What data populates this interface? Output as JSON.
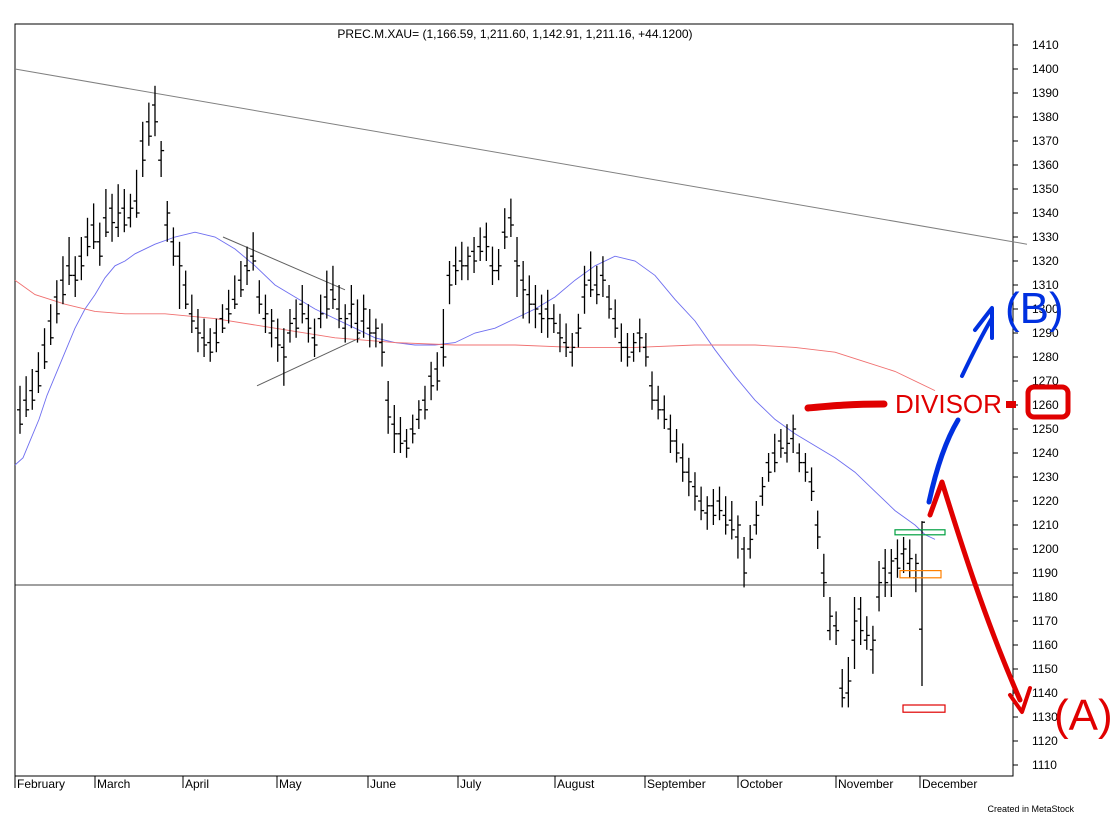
{
  "chart_data": {
    "type": "ohlc",
    "title": "PREC.M.XAU= (1,166.59, 1,211.60, 1,142.91, 1,211.16, +44.1200)",
    "credit": "Created in MetaStock",
    "ylim": [
      1105,
      1416
    ],
    "y_ticks": [
      1410,
      1400,
      1390,
      1380,
      1370,
      1360,
      1350,
      1340,
      1330,
      1320,
      1310,
      1300,
      1290,
      1280,
      1270,
      1260,
      1250,
      1240,
      1230,
      1220,
      1210,
      1200,
      1190,
      1180,
      1170,
      1160,
      1150,
      1140,
      1130,
      1120,
      1110
    ],
    "x_labels": [
      "February",
      "March",
      "April",
      "May",
      "June",
      "July",
      "August",
      "September",
      "October",
      "November",
      "December"
    ],
    "bars": [
      [
        1258,
        1252,
        1268,
        1248
      ],
      [
        1262,
        1258,
        1272,
        1255
      ],
      [
        1266,
        1262,
        1275,
        1258
      ],
      [
        1274,
        1268,
        1282,
        1265
      ],
      [
        1285,
        1278,
        1292,
        1275
      ],
      [
        1295,
        1288,
        1302,
        1285
      ],
      [
        1305,
        1298,
        1312,
        1294
      ],
      [
        1312,
        1306,
        1322,
        1302
      ],
      [
        1318,
        1314,
        1330,
        1310
      ],
      [
        1314,
        1312,
        1322,
        1305
      ],
      [
        1322,
        1318,
        1330,
        1312
      ],
      [
        1330,
        1326,
        1338,
        1322
      ],
      [
        1335,
        1328,
        1344,
        1325
      ],
      [
        1328,
        1322,
        1336,
        1318
      ],
      [
        1338,
        1332,
        1350,
        1330
      ],
      [
        1342,
        1336,
        1348,
        1328
      ],
      [
        1334,
        1340,
        1352,
        1330
      ],
      [
        1342,
        1335,
        1350,
        1332
      ],
      [
        1338,
        1342,
        1348,
        1334
      ],
      [
        1345,
        1340,
        1358,
        1338
      ],
      [
        1370,
        1362,
        1378,
        1355
      ],
      [
        1378,
        1372,
        1386,
        1368
      ],
      [
        1385,
        1378,
        1393,
        1372
      ],
      [
        1362,
        1366,
        1370,
        1355
      ],
      [
        1335,
        1340,
        1345,
        1328
      ],
      [
        1328,
        1322,
        1334,
        1318
      ],
      [
        1322,
        1318,
        1328,
        1300
      ],
      [
        1310,
        1302,
        1316,
        1300
      ],
      [
        1298,
        1295,
        1306,
        1290
      ],
      [
        1292,
        1290,
        1300,
        1282
      ],
      [
        1288,
        1285,
        1296,
        1280
      ],
      [
        1286,
        1282,
        1292,
        1278
      ],
      [
        1290,
        1286,
        1296,
        1282
      ],
      [
        1296,
        1292,
        1302,
        1290
      ],
      [
        1300,
        1298,
        1308,
        1294
      ],
      [
        1304,
        1302,
        1314,
        1300
      ],
      [
        1312,
        1308,
        1320,
        1305
      ],
      [
        1318,
        1316,
        1326,
        1310
      ],
      [
        1322,
        1320,
        1332,
        1316
      ],
      [
        1305,
        1302,
        1312,
        1298
      ],
      [
        1296,
        1298,
        1306,
        1290
      ],
      [
        1290,
        1295,
        1300,
        1284
      ],
      [
        1288,
        1285,
        1296,
        1278
      ],
      [
        1284,
        1280,
        1292,
        1268
      ],
      [
        1290,
        1294,
        1300,
        1286
      ],
      [
        1296,
        1292,
        1304,
        1288
      ],
      [
        1302,
        1298,
        1310,
        1294
      ],
      [
        1296,
        1292,
        1302,
        1286
      ],
      [
        1288,
        1285,
        1296,
        1280
      ],
      [
        1296,
        1298,
        1306,
        1292
      ],
      [
        1305,
        1300,
        1316,
        1296
      ],
      [
        1308,
        1304,
        1318,
        1300
      ],
      [
        1300,
        1296,
        1310,
        1292
      ],
      [
        1292,
        1296,
        1302,
        1286
      ],
      [
        1298,
        1302,
        1310,
        1292
      ],
      [
        1294,
        1290,
        1304,
        1286
      ],
      [
        1295,
        1300,
        1306,
        1288
      ],
      [
        1292,
        1290,
        1300,
        1284
      ],
      [
        1290,
        1292,
        1296,
        1284
      ],
      [
        1286,
        1282,
        1294,
        1276
      ],
      [
        1262,
        1255,
        1270,
        1248
      ],
      [
        1252,
        1248,
        1260,
        1240
      ],
      [
        1248,
        1244,
        1255,
        1240
      ],
      [
        1245,
        1242,
        1250,
        1238
      ],
      [
        1250,
        1248,
        1256,
        1244
      ],
      [
        1254,
        1258,
        1262,
        1250
      ],
      [
        1262,
        1258,
        1268,
        1254
      ],
      [
        1272,
        1268,
        1278,
        1262
      ],
      [
        1275,
        1270,
        1282,
        1266
      ],
      [
        1284,
        1280,
        1300,
        1276
      ],
      [
        1314,
        1310,
        1320,
        1302
      ],
      [
        1318,
        1316,
        1326,
        1310
      ],
      [
        1320,
        1318,
        1328,
        1312
      ],
      [
        1318,
        1322,
        1326,
        1312
      ],
      [
        1324,
        1320,
        1330,
        1315
      ],
      [
        1326,
        1324,
        1334,
        1320
      ],
      [
        1330,
        1326,
        1336,
        1320
      ],
      [
        1318,
        1316,
        1326,
        1310
      ],
      [
        1316,
        1318,
        1325,
        1312
      ],
      [
        1332,
        1330,
        1342,
        1325
      ],
      [
        1338,
        1335,
        1346,
        1330
      ],
      [
        1320,
        1318,
        1330,
        1305
      ],
      [
        1312,
        1308,
        1320,
        1296
      ],
      [
        1306,
        1302,
        1314,
        1294
      ],
      [
        1302,
        1300,
        1310,
        1292
      ],
      [
        1298,
        1296,
        1306,
        1290
      ],
      [
        1300,
        1296,
        1308,
        1288
      ],
      [
        1296,
        1294,
        1302,
        1290
      ],
      [
        1290,
        1288,
        1298,
        1282
      ],
      [
        1286,
        1284,
        1294,
        1280
      ],
      [
        1282,
        1284,
        1290,
        1276
      ],
      [
        1290,
        1292,
        1298,
        1284
      ],
      [
        1305,
        1310,
        1318,
        1298
      ],
      [
        1312,
        1308,
        1324,
        1305
      ],
      [
        1310,
        1306,
        1318,
        1302
      ],
      [
        1314,
        1312,
        1322,
        1305
      ],
      [
        1305,
        1300,
        1310,
        1296
      ],
      [
        1296,
        1292,
        1304,
        1288
      ],
      [
        1286,
        1284,
        1294,
        1278
      ],
      [
        1284,
        1280,
        1290,
        1276
      ],
      [
        1282,
        1286,
        1290,
        1278
      ],
      [
        1290,
        1288,
        1296,
        1282
      ],
      [
        1284,
        1280,
        1290,
        1276
      ],
      [
        1268,
        1262,
        1274,
        1258
      ],
      [
        1262,
        1258,
        1268,
        1254
      ],
      [
        1258,
        1254,
        1264,
        1250
      ],
      [
        1250,
        1245,
        1256,
        1240
      ],
      [
        1245,
        1240,
        1250,
        1236
      ],
      [
        1238,
        1232,
        1244,
        1228
      ],
      [
        1232,
        1228,
        1238,
        1222
      ],
      [
        1226,
        1222,
        1232,
        1216
      ],
      [
        1220,
        1216,
        1226,
        1212
      ],
      [
        1215,
        1218,
        1222,
        1208
      ],
      [
        1218,
        1214,
        1225,
        1210
      ],
      [
        1220,
        1216,
        1226,
        1212
      ],
      [
        1214,
        1210,
        1222,
        1206
      ],
      [
        1212,
        1208,
        1220,
        1204
      ],
      [
        1205,
        1210,
        1214,
        1196
      ],
      [
        1200,
        1190,
        1205,
        1184
      ],
      [
        1200,
        1204,
        1210,
        1196
      ],
      [
        1210,
        1214,
        1220,
        1206
      ],
      [
        1222,
        1226,
        1230,
        1218
      ],
      [
        1236,
        1232,
        1240,
        1228
      ],
      [
        1240,
        1236,
        1248,
        1232
      ],
      [
        1245,
        1242,
        1250,
        1238
      ],
      [
        1240,
        1244,
        1252,
        1236
      ],
      [
        1246,
        1250,
        1256,
        1240
      ],
      [
        1240,
        1236,
        1244,
        1232
      ],
      [
        1236,
        1232,
        1240,
        1228
      ],
      [
        1228,
        1224,
        1234,
        1220
      ],
      [
        1210,
        1205,
        1216,
        1200
      ],
      [
        1190,
        1186,
        1198,
        1180
      ],
      [
        1166,
        1172,
        1180,
        1162
      ],
      [
        1168,
        1166,
        1174,
        1160
      ],
      [
        1142,
        1138,
        1150,
        1134
      ],
      [
        1140,
        1145,
        1155,
        1134
      ],
      [
        1162,
        1170,
        1180,
        1150
      ],
      [
        1175,
        1166,
        1180,
        1160
      ],
      [
        1162,
        1164,
        1172,
        1158
      ],
      [
        1158,
        1162,
        1168,
        1148
      ],
      [
        1180,
        1186,
        1195,
        1174
      ],
      [
        1192,
        1186,
        1200,
        1180
      ],
      [
        1190,
        1195,
        1200,
        1180
      ],
      [
        1196,
        1192,
        1204,
        1188
      ],
      [
        1198,
        1200,
        1205,
        1190
      ],
      [
        1194,
        1196,
        1204,
        1188
      ],
      [
        1188,
        1194,
        1198,
        1182
      ],
      [
        1166.59,
        1211.16,
        1211.6,
        1142.91
      ]
    ],
    "ma_blue": [
      [
        0,
        1235
      ],
      [
        8,
        1238
      ],
      [
        16,
        1246
      ],
      [
        24,
        1254
      ],
      [
        32,
        1264
      ],
      [
        40,
        1272
      ],
      [
        50,
        1282
      ],
      [
        60,
        1292
      ],
      [
        70,
        1300
      ],
      [
        80,
        1306
      ],
      [
        90,
        1313
      ],
      [
        100,
        1318
      ],
      [
        110,
        1320
      ],
      [
        120,
        1323
      ],
      [
        140,
        1327
      ],
      [
        160,
        1330
      ],
      [
        180,
        1332
      ],
      [
        200,
        1330
      ],
      [
        220,
        1325
      ],
      [
        240,
        1318
      ],
      [
        260,
        1310
      ],
      [
        280,
        1305
      ],
      [
        300,
        1300
      ],
      [
        320,
        1296
      ],
      [
        340,
        1292
      ],
      [
        360,
        1288
      ],
      [
        380,
        1286
      ],
      [
        400,
        1285
      ],
      [
        420,
        1285
      ],
      [
        440,
        1286
      ],
      [
        460,
        1290
      ],
      [
        480,
        1292
      ],
      [
        500,
        1296
      ],
      [
        520,
        1300
      ],
      [
        540,
        1305
      ],
      [
        560,
        1312
      ],
      [
        580,
        1318
      ],
      [
        600,
        1322
      ],
      [
        620,
        1320
      ],
      [
        640,
        1314
      ],
      [
        660,
        1304
      ],
      [
        680,
        1295
      ],
      [
        700,
        1283
      ],
      [
        720,
        1272
      ],
      [
        740,
        1262
      ],
      [
        760,
        1254
      ],
      [
        780,
        1248
      ],
      [
        800,
        1243
      ],
      [
        820,
        1238
      ],
      [
        840,
        1232
      ],
      [
        860,
        1224
      ],
      [
        880,
        1216
      ],
      [
        900,
        1210
      ],
      [
        910,
        1206
      ],
      [
        920,
        1204
      ]
    ],
    "ma_red": [
      [
        0,
        1312
      ],
      [
        20,
        1306
      ],
      [
        50,
        1302
      ],
      [
        80,
        1299
      ],
      [
        110,
        1298
      ],
      [
        150,
        1298
      ],
      [
        200,
        1296
      ],
      [
        260,
        1292
      ],
      [
        320,
        1288
      ],
      [
        380,
        1286
      ],
      [
        440,
        1285
      ],
      [
        500,
        1285
      ],
      [
        560,
        1284
      ],
      [
        620,
        1284
      ],
      [
        680,
        1285
      ],
      [
        740,
        1285
      ],
      [
        780,
        1284
      ],
      [
        820,
        1282
      ],
      [
        850,
        1278
      ],
      [
        880,
        1274
      ],
      [
        920,
        1266
      ]
    ],
    "trendlines": [
      {
        "points": [
          [
            0,
            1400
          ],
          [
            1012,
            1327
          ]
        ],
        "color": "#808080"
      },
      {
        "points": [
          [
            208,
            1330
          ],
          [
            330,
            1308
          ]
        ],
        "color": "#606060"
      },
      {
        "points": [
          [
            242,
            1268
          ],
          [
            345,
            1288
          ]
        ],
        "color": "#606060"
      }
    ],
    "hline": 1185,
    "boxes": [
      {
        "x": [
          880,
          930
        ],
        "y": [
          1206,
          1208
        ],
        "color": "#00a040"
      },
      {
        "x": [
          885,
          926
        ],
        "y": [
          1188,
          1191
        ],
        "color": "#ff8000"
      },
      {
        "x": [
          888,
          930
        ],
        "y": [
          1132,
          1135
        ],
        "color": "#e00000"
      }
    ],
    "annotations": {
      "divisor": "DIVISOR",
      "a_label": "(A)",
      "b_label": "(B)"
    }
  }
}
